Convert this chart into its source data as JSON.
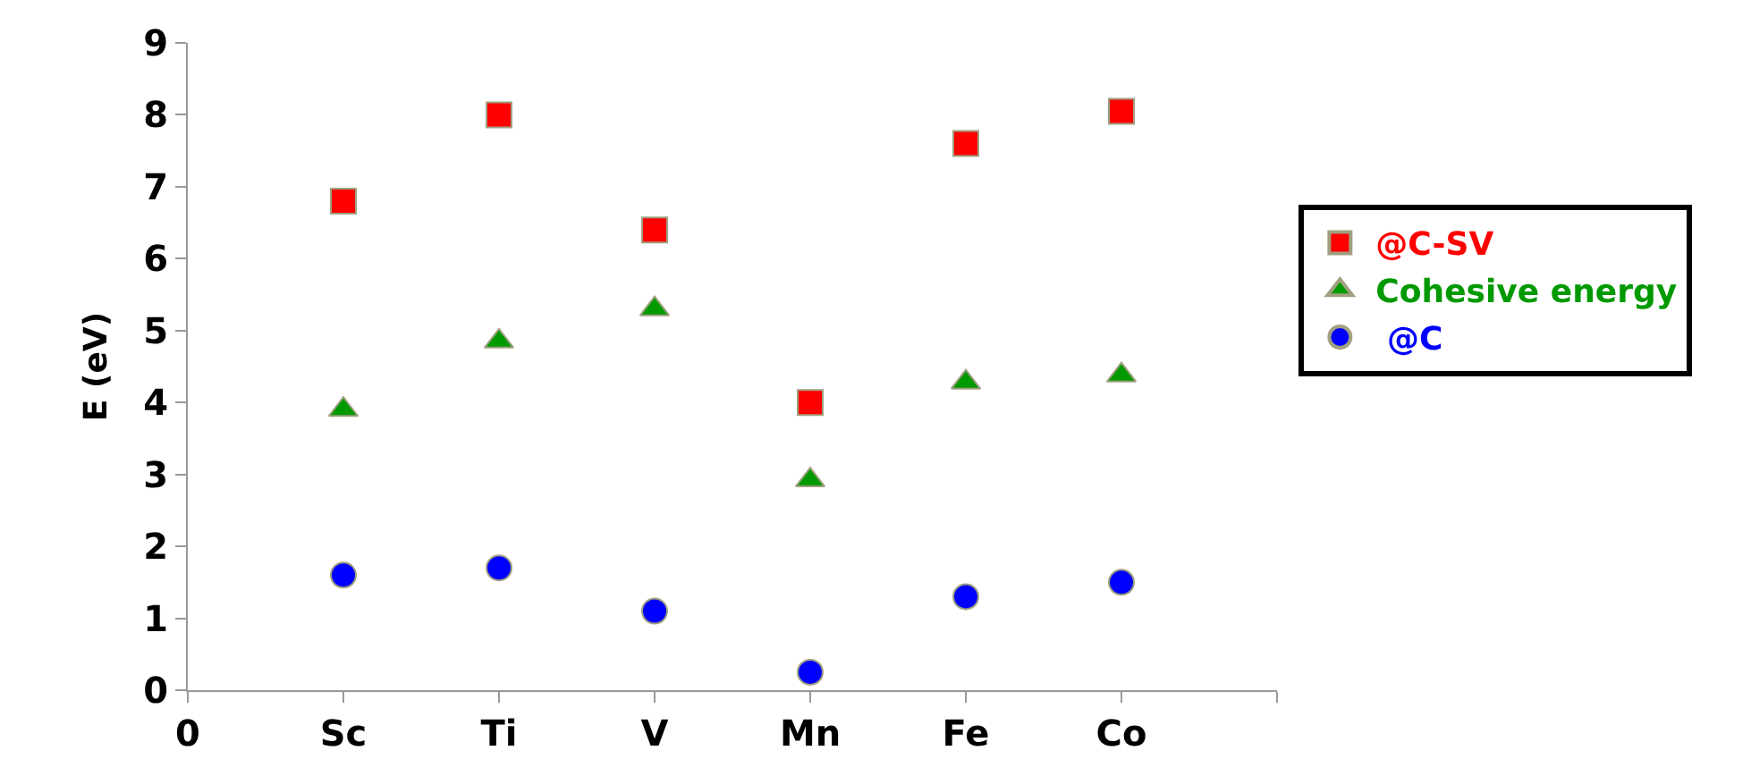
{
  "chart_data": {
    "type": "scatter",
    "ylabel": "E (eV)",
    "categories": [
      "0",
      "Sc",
      "Ti",
      "V",
      "Mn",
      "Fe",
      "Co",
      null
    ],
    "ylim": [
      0,
      9
    ],
    "yticks": [
      0,
      1,
      2,
      3,
      4,
      5,
      6,
      7,
      8,
      9
    ],
    "legend": "right",
    "series": [
      {
        "name": "@C-SV",
        "color": "#ff0000",
        "marker": "square",
        "values": [
          null,
          6.8,
          8.0,
          6.4,
          4.0,
          7.6,
          8.05,
          null
        ]
      },
      {
        "name": "Cohesive energy",
        "color": "#009900",
        "marker": "triangle",
        "values": [
          null,
          3.9,
          4.85,
          5.3,
          2.92,
          4.28,
          4.38,
          null
        ]
      },
      {
        "name": " @C",
        "color": "#0000ff",
        "marker": "circle",
        "values": [
          null,
          1.6,
          1.7,
          1.1,
          0.25,
          1.3,
          1.5,
          null
        ]
      }
    ]
  }
}
